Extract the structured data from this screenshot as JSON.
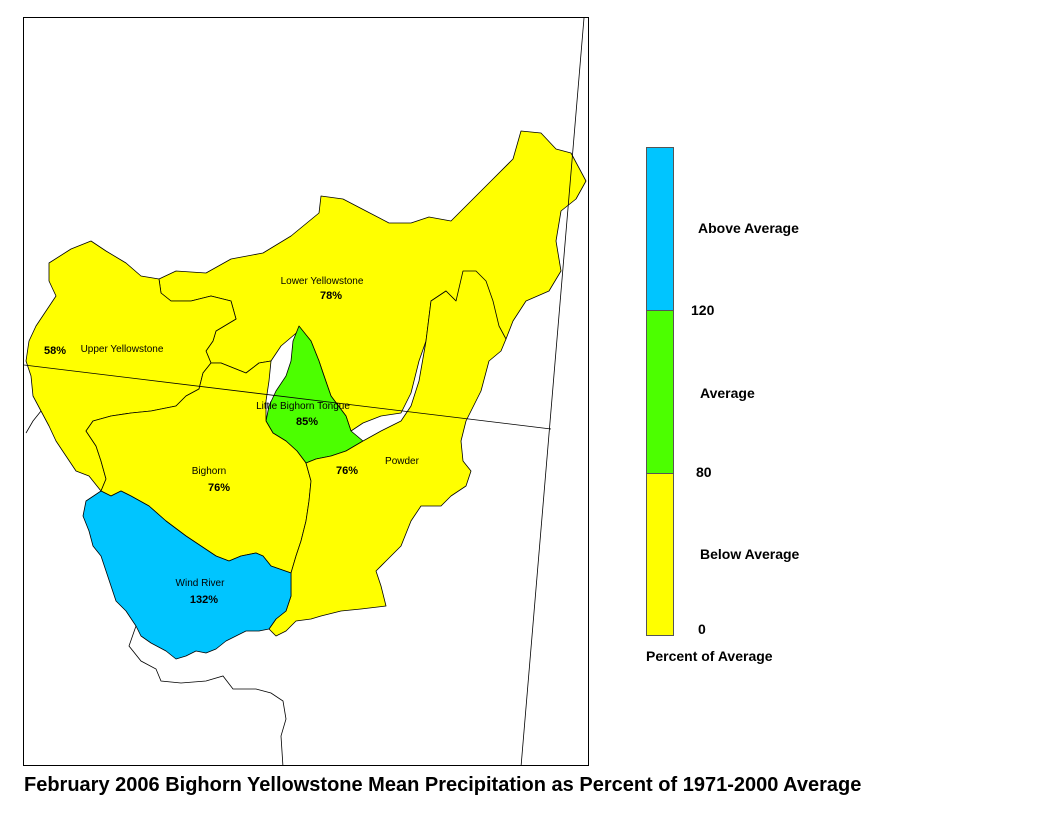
{
  "title": "February 2006 Bighorn Yellowstone Mean Precipitation as Percent of 1971-2000 Average",
  "legend": {
    "caption": "Percent of Average",
    "classes": [
      {
        "label": "Above Average",
        "color": "#00c5ff"
      },
      {
        "label": "Average",
        "color": "#4cff00"
      },
      {
        "label": "Below Average",
        "color": "#ffff00"
      }
    ],
    "breaks": [
      "120",
      "80",
      "0"
    ]
  },
  "basins": [
    {
      "name": "Lower Yellowstone",
      "value": "78%",
      "color": "#ffff00"
    },
    {
      "name": "Upper Yellowstone",
      "value": "58%",
      "color": "#ffff00"
    },
    {
      "name": "Little Bighorn Tongue",
      "value": "85%",
      "color": "#4cff00"
    },
    {
      "name": "Bighorn",
      "value": "76%",
      "color": "#ffff00"
    },
    {
      "name": "Powder",
      "value": "76%",
      "color": "#ffff00"
    },
    {
      "name": "Wind River",
      "value": "132%",
      "color": "#00c5ff"
    }
  ]
}
